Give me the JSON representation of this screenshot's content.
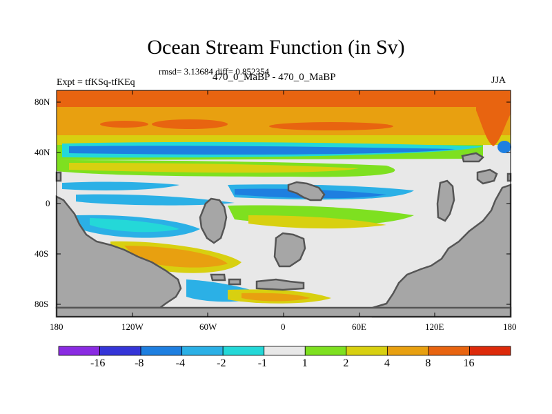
{
  "title": "Ocean Stream Function (in Sv)",
  "stats": "rmsd= 3.13684 diff= 0.852354",
  "left_label": "Expt = tfKSq-tfKEq",
  "center_label": "470_0_MaBP - 470_0_MaBP",
  "right_label": "JJA",
  "y_ticks": [
    "80N",
    "40N",
    "0",
    "40S",
    "80S"
  ],
  "x_ticks": [
    "180",
    "120W",
    "60W",
    "0",
    "60E",
    "120E",
    "180"
  ],
  "colorbar": {
    "labels": [
      "-16",
      "-8",
      "-4",
      "-2",
      "-1",
      "1",
      "2",
      "4",
      "8",
      "16"
    ],
    "colors": [
      "#8a2be2",
      "#3535d8",
      "#1e7fe0",
      "#2bb0e6",
      "#24d8d8",
      "#e8e8e8",
      "#7ee020",
      "#d8d010",
      "#e8a010",
      "#e86410",
      "#dd2a0a"
    ]
  },
  "colors": {
    "land": "#a6a6a6",
    "land_edge": "#555555",
    "neutral": "#e8e8e8"
  }
}
